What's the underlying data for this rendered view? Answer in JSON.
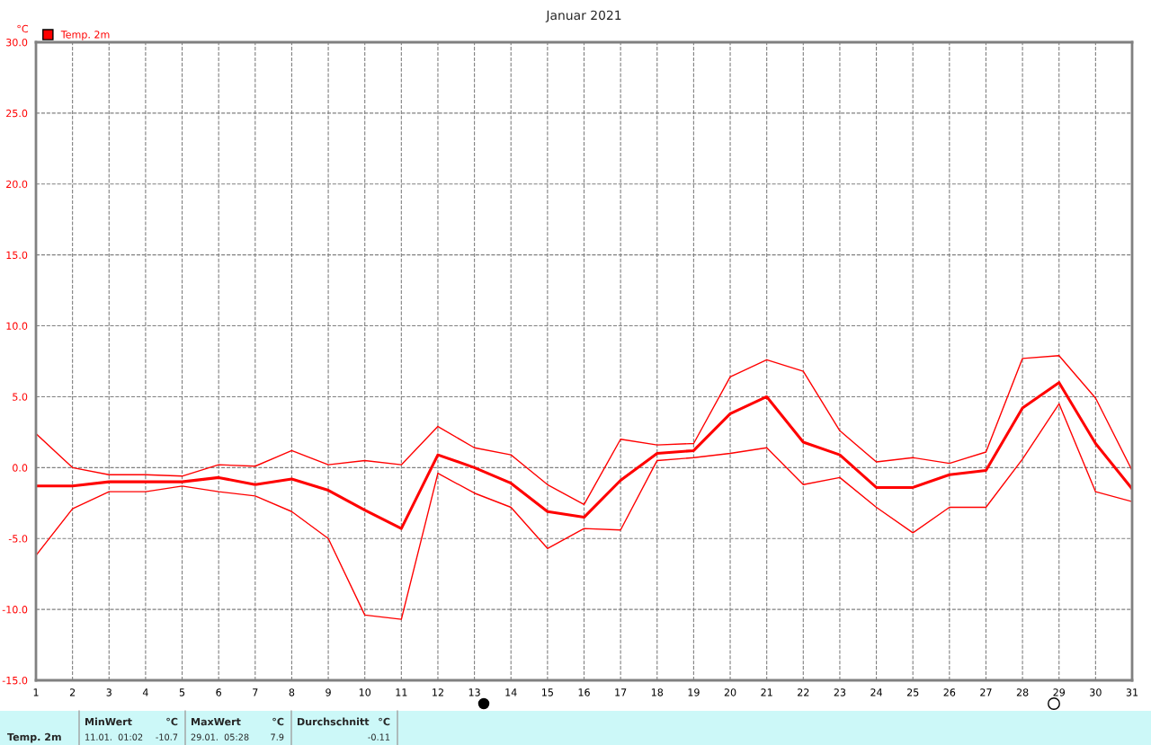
{
  "chart_data": {
    "type": "line",
    "title": "Januar 2021",
    "ylabel": "°C",
    "x": [
      1,
      2,
      3,
      4,
      5,
      6,
      7,
      8,
      9,
      10,
      11,
      12,
      13,
      14,
      15,
      16,
      17,
      18,
      19,
      20,
      21,
      22,
      23,
      24,
      25,
      26,
      27,
      28,
      29,
      30,
      31
    ],
    "series": [
      {
        "name": "Temp. 2m",
        "color": "#ff0000",
        "values": [
          -1.3,
          -1.3,
          -1.0,
          -1.0,
          -1.0,
          -0.7,
          -1.2,
          -0.8,
          -1.6,
          -3.0,
          -4.3,
          0.9,
          0.0,
          -1.1,
          -3.1,
          -3.5,
          -0.9,
          1.0,
          1.2,
          3.8,
          5.0,
          1.8,
          0.9,
          -1.4,
          -1.4,
          -0.5,
          -0.2,
          4.2,
          6.0,
          1.7,
          -1.5
        ]
      },
      {
        "color": "#ff0000",
        "values": [
          2.4,
          0.0,
          -0.5,
          -0.5,
          -0.6,
          0.2,
          0.1,
          1.2,
          0.2,
          0.5,
          0.2,
          2.9,
          1.4,
          0.9,
          -1.2,
          -2.6,
          2.0,
          1.6,
          1.7,
          6.4,
          7.6,
          6.8,
          2.6,
          0.4,
          0.7,
          0.3,
          1.1,
          7.7,
          7.9,
          4.9,
          -0.2
        ]
      },
      {
        "color": "#ff0000",
        "values": [
          -6.2,
          -2.9,
          -1.7,
          -1.7,
          -1.3,
          -1.7,
          -2.0,
          -3.1,
          -5.0,
          -10.4,
          -10.7,
          -0.4,
          -1.8,
          -2.8,
          -5.7,
          -4.3,
          -4.4,
          0.5,
          0.7,
          1.0,
          1.4,
          -1.2,
          -0.7,
          -2.8,
          -4.6,
          -2.8,
          -2.8,
          0.6,
          4.5,
          -1.7,
          -2.4
        ]
      }
    ],
    "xlim": [
      1,
      31
    ],
    "xticks": [
      1,
      2,
      3,
      4,
      5,
      6,
      7,
      8,
      9,
      10,
      11,
      12,
      13,
      14,
      15,
      16,
      17,
      18,
      19,
      20,
      21,
      22,
      23,
      24,
      25,
      26,
      27,
      28,
      29,
      30,
      31
    ],
    "ylim": [
      -15,
      30
    ],
    "yticks": [
      {
        "value": -15,
        "label": "-15.0"
      },
      {
        "value": -10,
        "label": "-10.0"
      },
      {
        "value": -5,
        "label": "-5.0"
      },
      {
        "value": 0,
        "label": "0.0"
      },
      {
        "value": 5,
        "label": "5.0"
      },
      {
        "value": 10,
        "label": "10.0"
      },
      {
        "value": 15,
        "label": "15.0"
      },
      {
        "value": 20,
        "label": "20.0"
      },
      {
        "value": 25,
        "label": "25.0"
      },
      {
        "value": 30,
        "label": "30.0"
      }
    ],
    "grid": true,
    "legend": "top left",
    "marker": "none",
    "line_style": "solid",
    "annotations": [
      "Temp. 2m",
      "MinWert",
      "°C",
      "11.01.  01:02",
      "-10.7",
      "MaxWert",
      "°C",
      "29.01.  05:28",
      "7.9",
      "Durchschnitt",
      "°C",
      "-0.11"
    ]
  }
}
